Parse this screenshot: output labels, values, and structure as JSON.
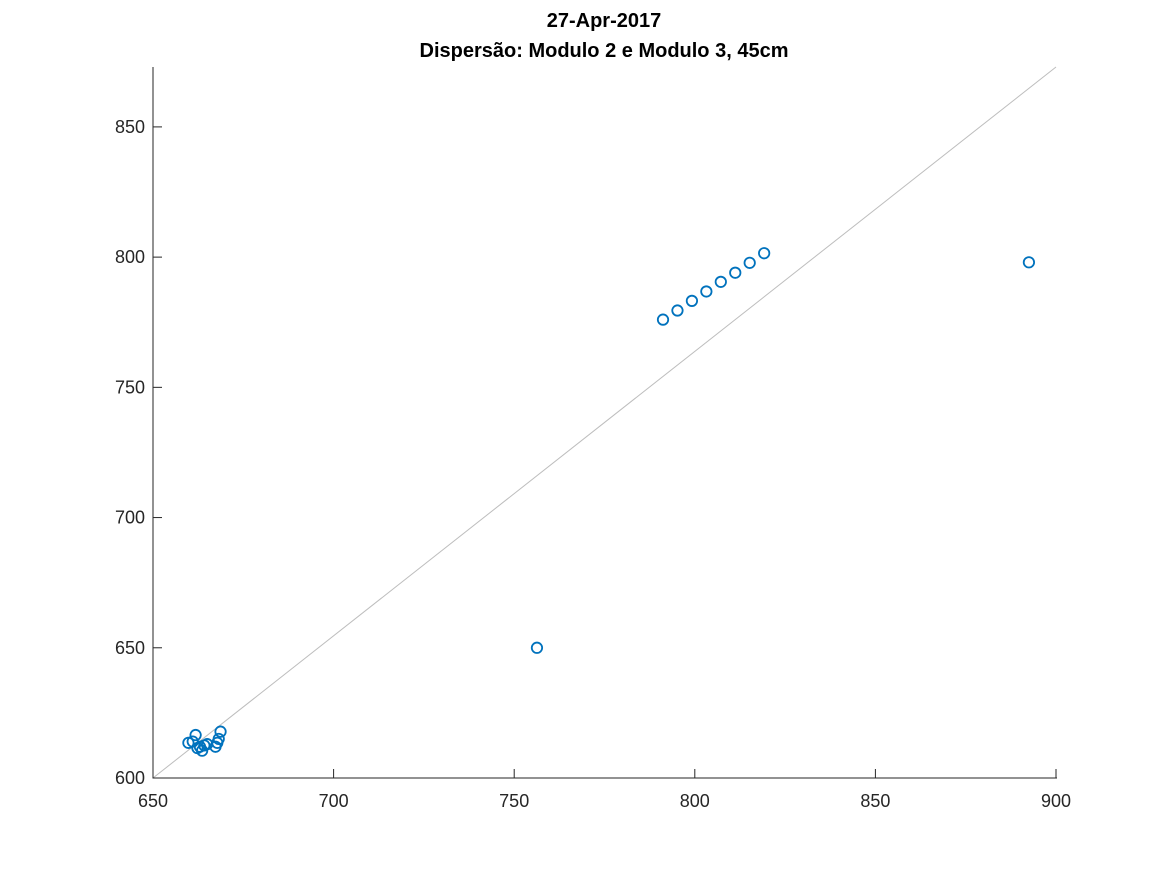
{
  "chart_data": {
    "type": "scatter",
    "title": "27-Apr-2017",
    "subtitle": "Dispersão: Modulo 2 e Modulo 3, 45cm",
    "xlabel": "",
    "ylabel": "",
    "xlim": [
      650,
      900
    ],
    "ylim": [
      600,
      873
    ],
    "x_ticks": [
      650,
      700,
      750,
      800,
      850,
      900
    ],
    "y_ticks": [
      600,
      650,
      700,
      750,
      800,
      850
    ],
    "grid": false,
    "reference_line": {
      "from": [
        650,
        600
      ],
      "to": [
        900,
        873
      ]
    },
    "marker_color": "#0072BD",
    "reference_line_color": "#BDBDBD",
    "points": [
      {
        "x": 659.8,
        "y": 613.5
      },
      {
        "x": 661.0,
        "y": 614.0
      },
      {
        "x": 661.8,
        "y": 616.5
      },
      {
        "x": 662.3,
        "y": 611.5
      },
      {
        "x": 663.0,
        "y": 612.0
      },
      {
        "x": 663.6,
        "y": 610.5
      },
      {
        "x": 664.2,
        "y": 612.5
      },
      {
        "x": 665.0,
        "y": 613.0
      },
      {
        "x": 667.3,
        "y": 612.0
      },
      {
        "x": 667.8,
        "y": 613.5
      },
      {
        "x": 668.2,
        "y": 615.0
      },
      {
        "x": 668.7,
        "y": 617.8
      },
      {
        "x": 756.3,
        "y": 650.0
      },
      {
        "x": 791.2,
        "y": 776.0
      },
      {
        "x": 795.2,
        "y": 779.5
      },
      {
        "x": 799.2,
        "y": 783.2
      },
      {
        "x": 803.2,
        "y": 786.8
      },
      {
        "x": 807.2,
        "y": 790.5
      },
      {
        "x": 811.2,
        "y": 794.0
      },
      {
        "x": 815.2,
        "y": 797.8
      },
      {
        "x": 819.2,
        "y": 801.5
      },
      {
        "x": 892.5,
        "y": 798.0
      }
    ]
  }
}
